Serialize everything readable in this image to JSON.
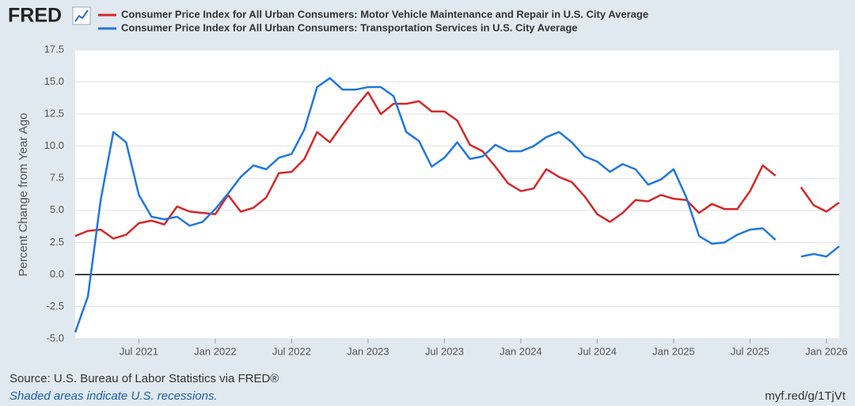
{
  "brand": "FRED",
  "chart_data": {
    "type": "line",
    "y_label": "Percent Change from Year Ago",
    "x": [
      "2021-02",
      "2021-03",
      "2021-04",
      "2021-05",
      "2021-06",
      "2021-07",
      "2021-08",
      "2021-09",
      "2021-10",
      "2021-11",
      "2021-12",
      "2022-01",
      "2022-02",
      "2022-03",
      "2022-04",
      "2022-05",
      "2022-06",
      "2022-07",
      "2022-08",
      "2022-09",
      "2022-10",
      "2022-11",
      "2022-12",
      "2023-01",
      "2023-02",
      "2023-03",
      "2023-04",
      "2023-05",
      "2023-06",
      "2023-07",
      "2023-08",
      "2023-09",
      "2023-10",
      "2023-11",
      "2023-12",
      "2024-01",
      "2024-02",
      "2024-03",
      "2024-04",
      "2024-05",
      "2024-06",
      "2024-07",
      "2024-08",
      "2024-09",
      "2024-10",
      "2024-11",
      "2024-12",
      "2025-01",
      "2025-02",
      "2025-03",
      "2025-04",
      "2025-05",
      "2025-06",
      "2025-07",
      "2025-08",
      "2025-09",
      "2025-10",
      "2025-11",
      "2025-12",
      "2026-01",
      "2026-02"
    ],
    "series": [
      {
        "name": "Consumer Price Index for All Urban Consumers: Motor Vehicle Maintenance and Repair in U.S. City Average",
        "color": "#d62728",
        "values": [
          3.0,
          3.4,
          3.5,
          2.8,
          3.1,
          4.0,
          4.2,
          3.9,
          5.3,
          4.9,
          4.8,
          4.7,
          6.2,
          4.9,
          5.2,
          6.0,
          7.9,
          8.0,
          9.0,
          11.1,
          10.3,
          11.7,
          13.0,
          14.2,
          12.5,
          13.3,
          13.3,
          13.5,
          12.7,
          12.7,
          12.0,
          10.1,
          9.6,
          8.4,
          7.1,
          6.5,
          6.7,
          8.2,
          7.6,
          7.2,
          6.1,
          4.7,
          4.1,
          4.8,
          5.8,
          5.7,
          6.2,
          5.9,
          5.8,
          4.8,
          5.5,
          5.1,
          5.1,
          6.5,
          8.5,
          7.7,
          null,
          6.8,
          5.4,
          4.9,
          5.6
        ]
      },
      {
        "name": "Consumer Price Index for All Urban Consumers: Transportation Services in U.S. City Average",
        "color": "#1f77e0",
        "values": [
          -4.5,
          -1.7,
          5.8,
          11.1,
          10.3,
          6.2,
          4.5,
          4.3,
          4.5,
          3.8,
          4.1,
          5.1,
          6.3,
          7.6,
          8.5,
          8.2,
          9.1,
          9.4,
          11.3,
          14.6,
          15.3,
          14.4,
          14.4,
          14.6,
          14.6,
          13.9,
          11.1,
          10.4,
          8.4,
          9.1,
          10.3,
          9.0,
          9.2,
          10.1,
          9.6,
          9.6,
          10.0,
          10.7,
          11.1,
          10.3,
          9.2,
          8.8,
          8.0,
          8.6,
          8.2,
          7.0,
          7.4,
          8.2,
          6.0,
          3.0,
          2.4,
          2.5,
          3.1,
          3.5,
          3.6,
          2.7,
          null,
          1.4,
          1.6,
          1.4,
          2.2
        ]
      }
    ],
    "xlim": [
      "2021-02",
      "2026-02"
    ],
    "xticks": [
      {
        "value": "2021-07",
        "label": "Jul 2021"
      },
      {
        "value": "2022-01",
        "label": "Jan 2022"
      },
      {
        "value": "2022-07",
        "label": "Jul 2022"
      },
      {
        "value": "2023-01",
        "label": "Jan 2023"
      },
      {
        "value": "2023-07",
        "label": "Jul 2023"
      },
      {
        "value": "2024-01",
        "label": "Jan 2024"
      },
      {
        "value": "2024-07",
        "label": "Jul 2024"
      },
      {
        "value": "2025-01",
        "label": "Jan 2025"
      },
      {
        "value": "2025-07",
        "label": "Jul 2025"
      },
      {
        "value": "2026-01",
        "label": "Jan 2026"
      }
    ],
    "ylim": [
      -5,
      17.5
    ],
    "yticks": [
      {
        "value": -5,
        "label": "-5.0"
      },
      -2.5,
      {
        "value": 0,
        "label": "0.0"
      },
      2.5,
      {
        "value": 5,
        "label": "5.0"
      },
      7.5,
      {
        "value": 10,
        "label": "10.0"
      },
      12.5,
      {
        "value": 15,
        "label": "15.0"
      },
      17.5
    ],
    "grid": true,
    "zero_line": true
  },
  "source": "Source: U.S. Bureau of Labor Statistics via FRED®",
  "note": "Shaded areas indicate U.S. recessions.",
  "short_url": "myf.red/g/1TjVt"
}
